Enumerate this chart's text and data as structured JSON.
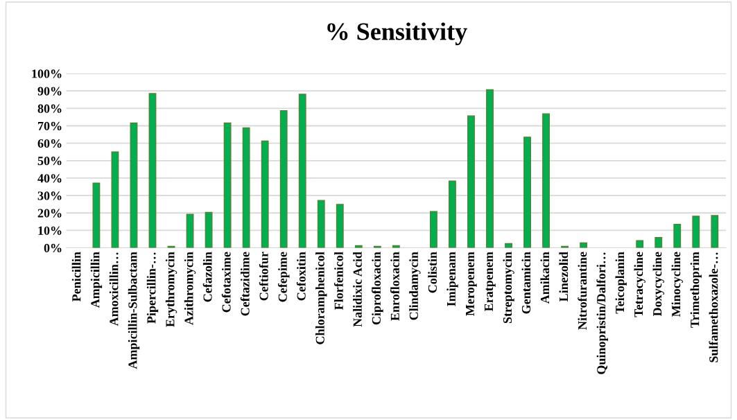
{
  "chart_data": {
    "type": "bar",
    "title": "% Sensitivity",
    "categories": [
      "Penicillin",
      "Ampicillin",
      "Amoxicillin…",
      "Ampicillin-Sulbactam",
      "Pipercillin-…",
      "Erythromycin",
      "Azithromycin",
      "Cefazolin",
      "Cefotaxime",
      "Ceftazidime",
      "Ceftiofur",
      "Cefepime",
      "Cefoxitin",
      "Chloramphenicol",
      "Florfenicol",
      "Nalidixic Acid",
      "Ciprofloxacin",
      "Enrofloxacin",
      "Clindamycin",
      "Colistin",
      "Imipenam",
      "Meropenem",
      "Eratpenem",
      "Streptomycin",
      "Gentamicin",
      "Amikacin",
      "Linezolid",
      "Nitrofurantine",
      "Quinopristin/Dalfori…",
      "Teicoplanin",
      "Tetracycline",
      "Doxycycline",
      "Minocycline",
      "Trimethoprim",
      "Sulfamethoxazole-…"
    ],
    "values": [
      0,
      37.1,
      55,
      71.6,
      88.5,
      0.8,
      19.2,
      20.3,
      71.6,
      68.8,
      61.3,
      78.7,
      88.1,
      27.2,
      24.9,
      1.2,
      0.8,
      1.2,
      0,
      20.8,
      38.3,
      75.7,
      90.7,
      2.4,
      63.5,
      76.9,
      0.8,
      2.8,
      0,
      0,
      4.1,
      5.9,
      13.5,
      18.1,
      18.5
    ],
    "color": "#00b050",
    "ylim": [
      0,
      100
    ],
    "yticks": [
      {
        "value": 0,
        "label": "0%"
      },
      {
        "value": 10,
        "label": "10%"
      },
      {
        "value": 20,
        "label": "20%"
      },
      {
        "value": 30,
        "label": "30%"
      },
      {
        "value": 40,
        "label": "40%"
      },
      {
        "value": 50,
        "label": "50%"
      },
      {
        "value": 60,
        "label": "60%"
      },
      {
        "value": 70,
        "label": "70%"
      },
      {
        "value": 80,
        "label": "80%"
      },
      {
        "value": 90,
        "label": "90%"
      },
      {
        "value": 100,
        "label": "100%"
      }
    ],
    "grid": "y",
    "legend": false
  }
}
